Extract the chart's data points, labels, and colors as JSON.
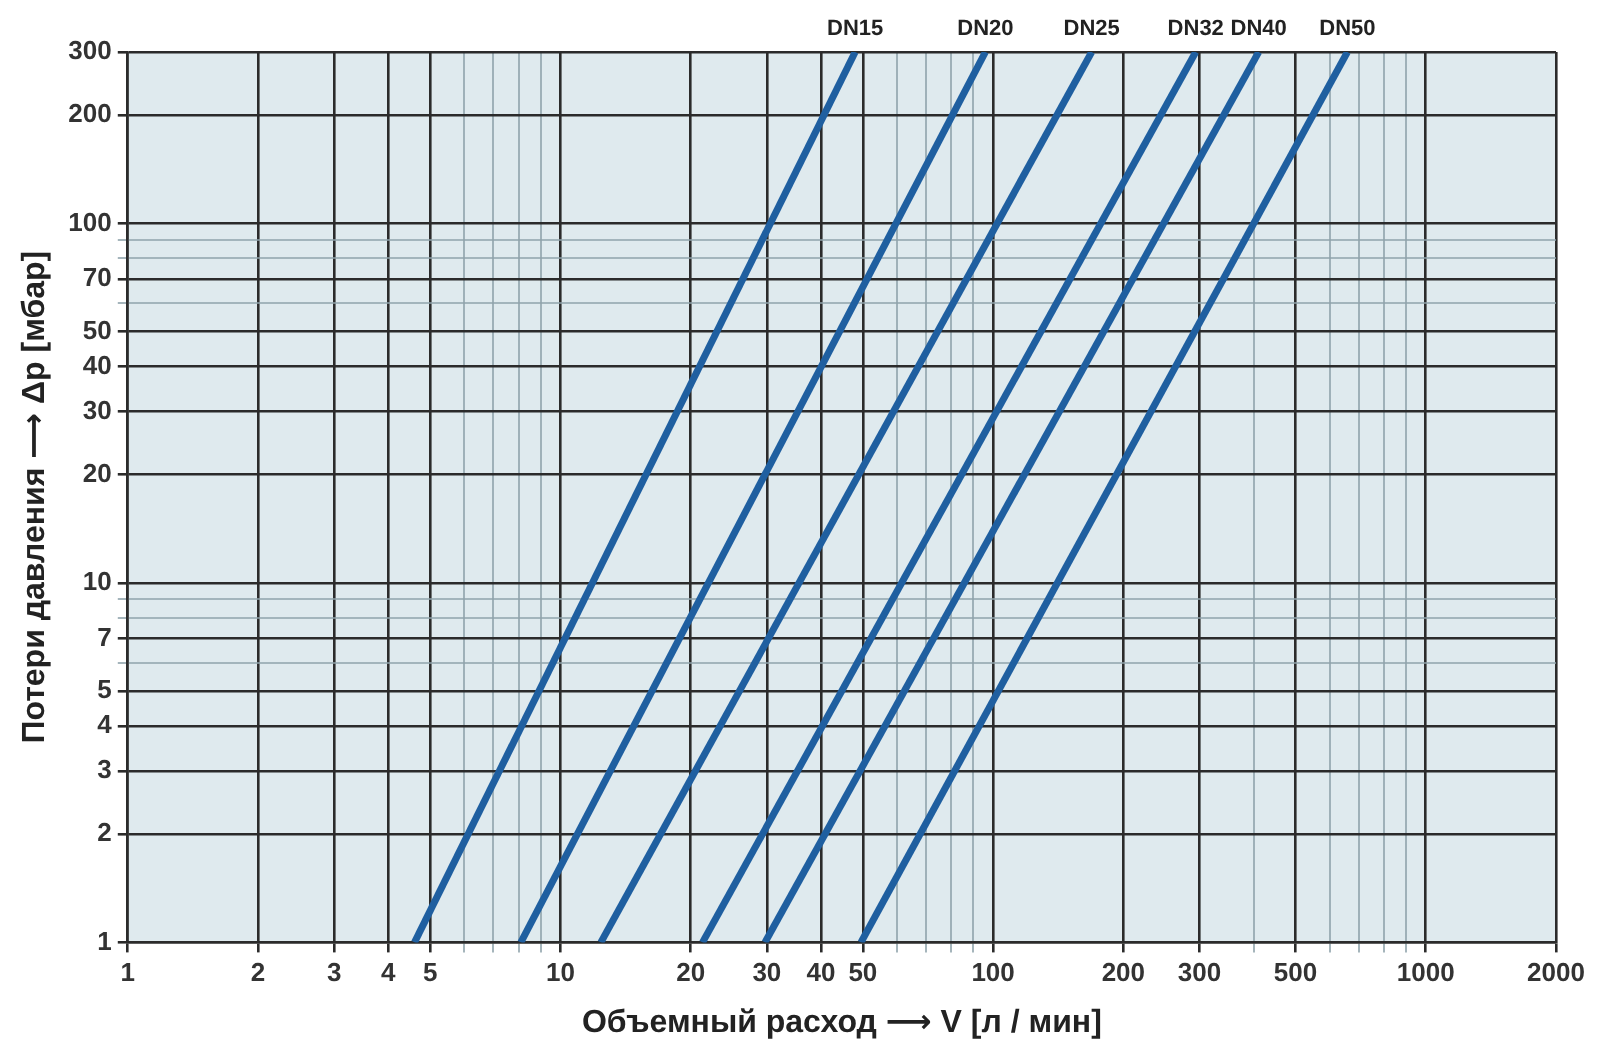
{
  "chart_data": {
    "type": "line",
    "xlabel": "Объемный расход ⟶ V [л / мин]",
    "ylabel": "Потери давления ⟶ Δp [мбар]",
    "log": "xy",
    "grid": true,
    "marker": "none",
    "line_style": "solid",
    "legend": false,
    "xlim": [
      1,
      2000
    ],
    "ylim": [
      1,
      300
    ],
    "xticks": [
      1,
      2,
      3,
      4,
      5,
      {
        "value": 6,
        "label": null
      },
      {
        "value": 7,
        "label": null
      },
      {
        "value": 8,
        "label": null
      },
      {
        "value": 9,
        "label": null
      },
      10,
      20,
      30,
      40,
      50,
      {
        "value": 60,
        "label": null
      },
      {
        "value": 70,
        "label": null
      },
      {
        "value": 80,
        "label": null
      },
      {
        "value": 90,
        "label": null
      },
      100,
      200,
      300,
      {
        "value": 400,
        "label": null
      },
      500,
      {
        "value": 600,
        "label": null
      },
      {
        "value": 700,
        "label": null
      },
      {
        "value": 800,
        "label": null
      },
      {
        "value": 900,
        "label": null
      },
      1000,
      2000
    ],
    "yticks": [
      1,
      2,
      3,
      4,
      5,
      {
        "value": 6,
        "label": null
      },
      7,
      {
        "value": 8,
        "label": null
      },
      {
        "value": 9,
        "label": null
      },
      10,
      20,
      30,
      40,
      50,
      {
        "value": 60,
        "label": null
      },
      70,
      {
        "value": 80,
        "label": null
      },
      {
        "value": 90,
        "label": null
      },
      100,
      200,
      300
    ],
    "series": [
      {
        "name": "DN15",
        "color": "#1f5fa0",
        "x": [
          4.6,
          48
        ],
        "values": [
          1,
          300
        ]
      },
      {
        "name": "DN20",
        "color": "#1f5fa0",
        "x": [
          8.1,
          96
        ],
        "values": [
          1,
          300
        ]
      },
      {
        "name": "DN25",
        "color": "#1f5fa0",
        "x": [
          12.4,
          169
        ],
        "values": [
          1,
          300
        ]
      },
      {
        "name": "DN32",
        "color": "#1f5fa0",
        "x": [
          21.3,
          294
        ],
        "values": [
          1,
          300
        ]
      },
      {
        "name": "DN40",
        "color": "#1f5fa0",
        "x": [
          29.7,
          411
        ],
        "values": [
          1,
          300
        ]
      },
      {
        "name": "DN50",
        "color": "#1f5fa0",
        "x": [
          49.5,
          659
        ],
        "values": [
          1,
          300
        ]
      }
    ]
  }
}
